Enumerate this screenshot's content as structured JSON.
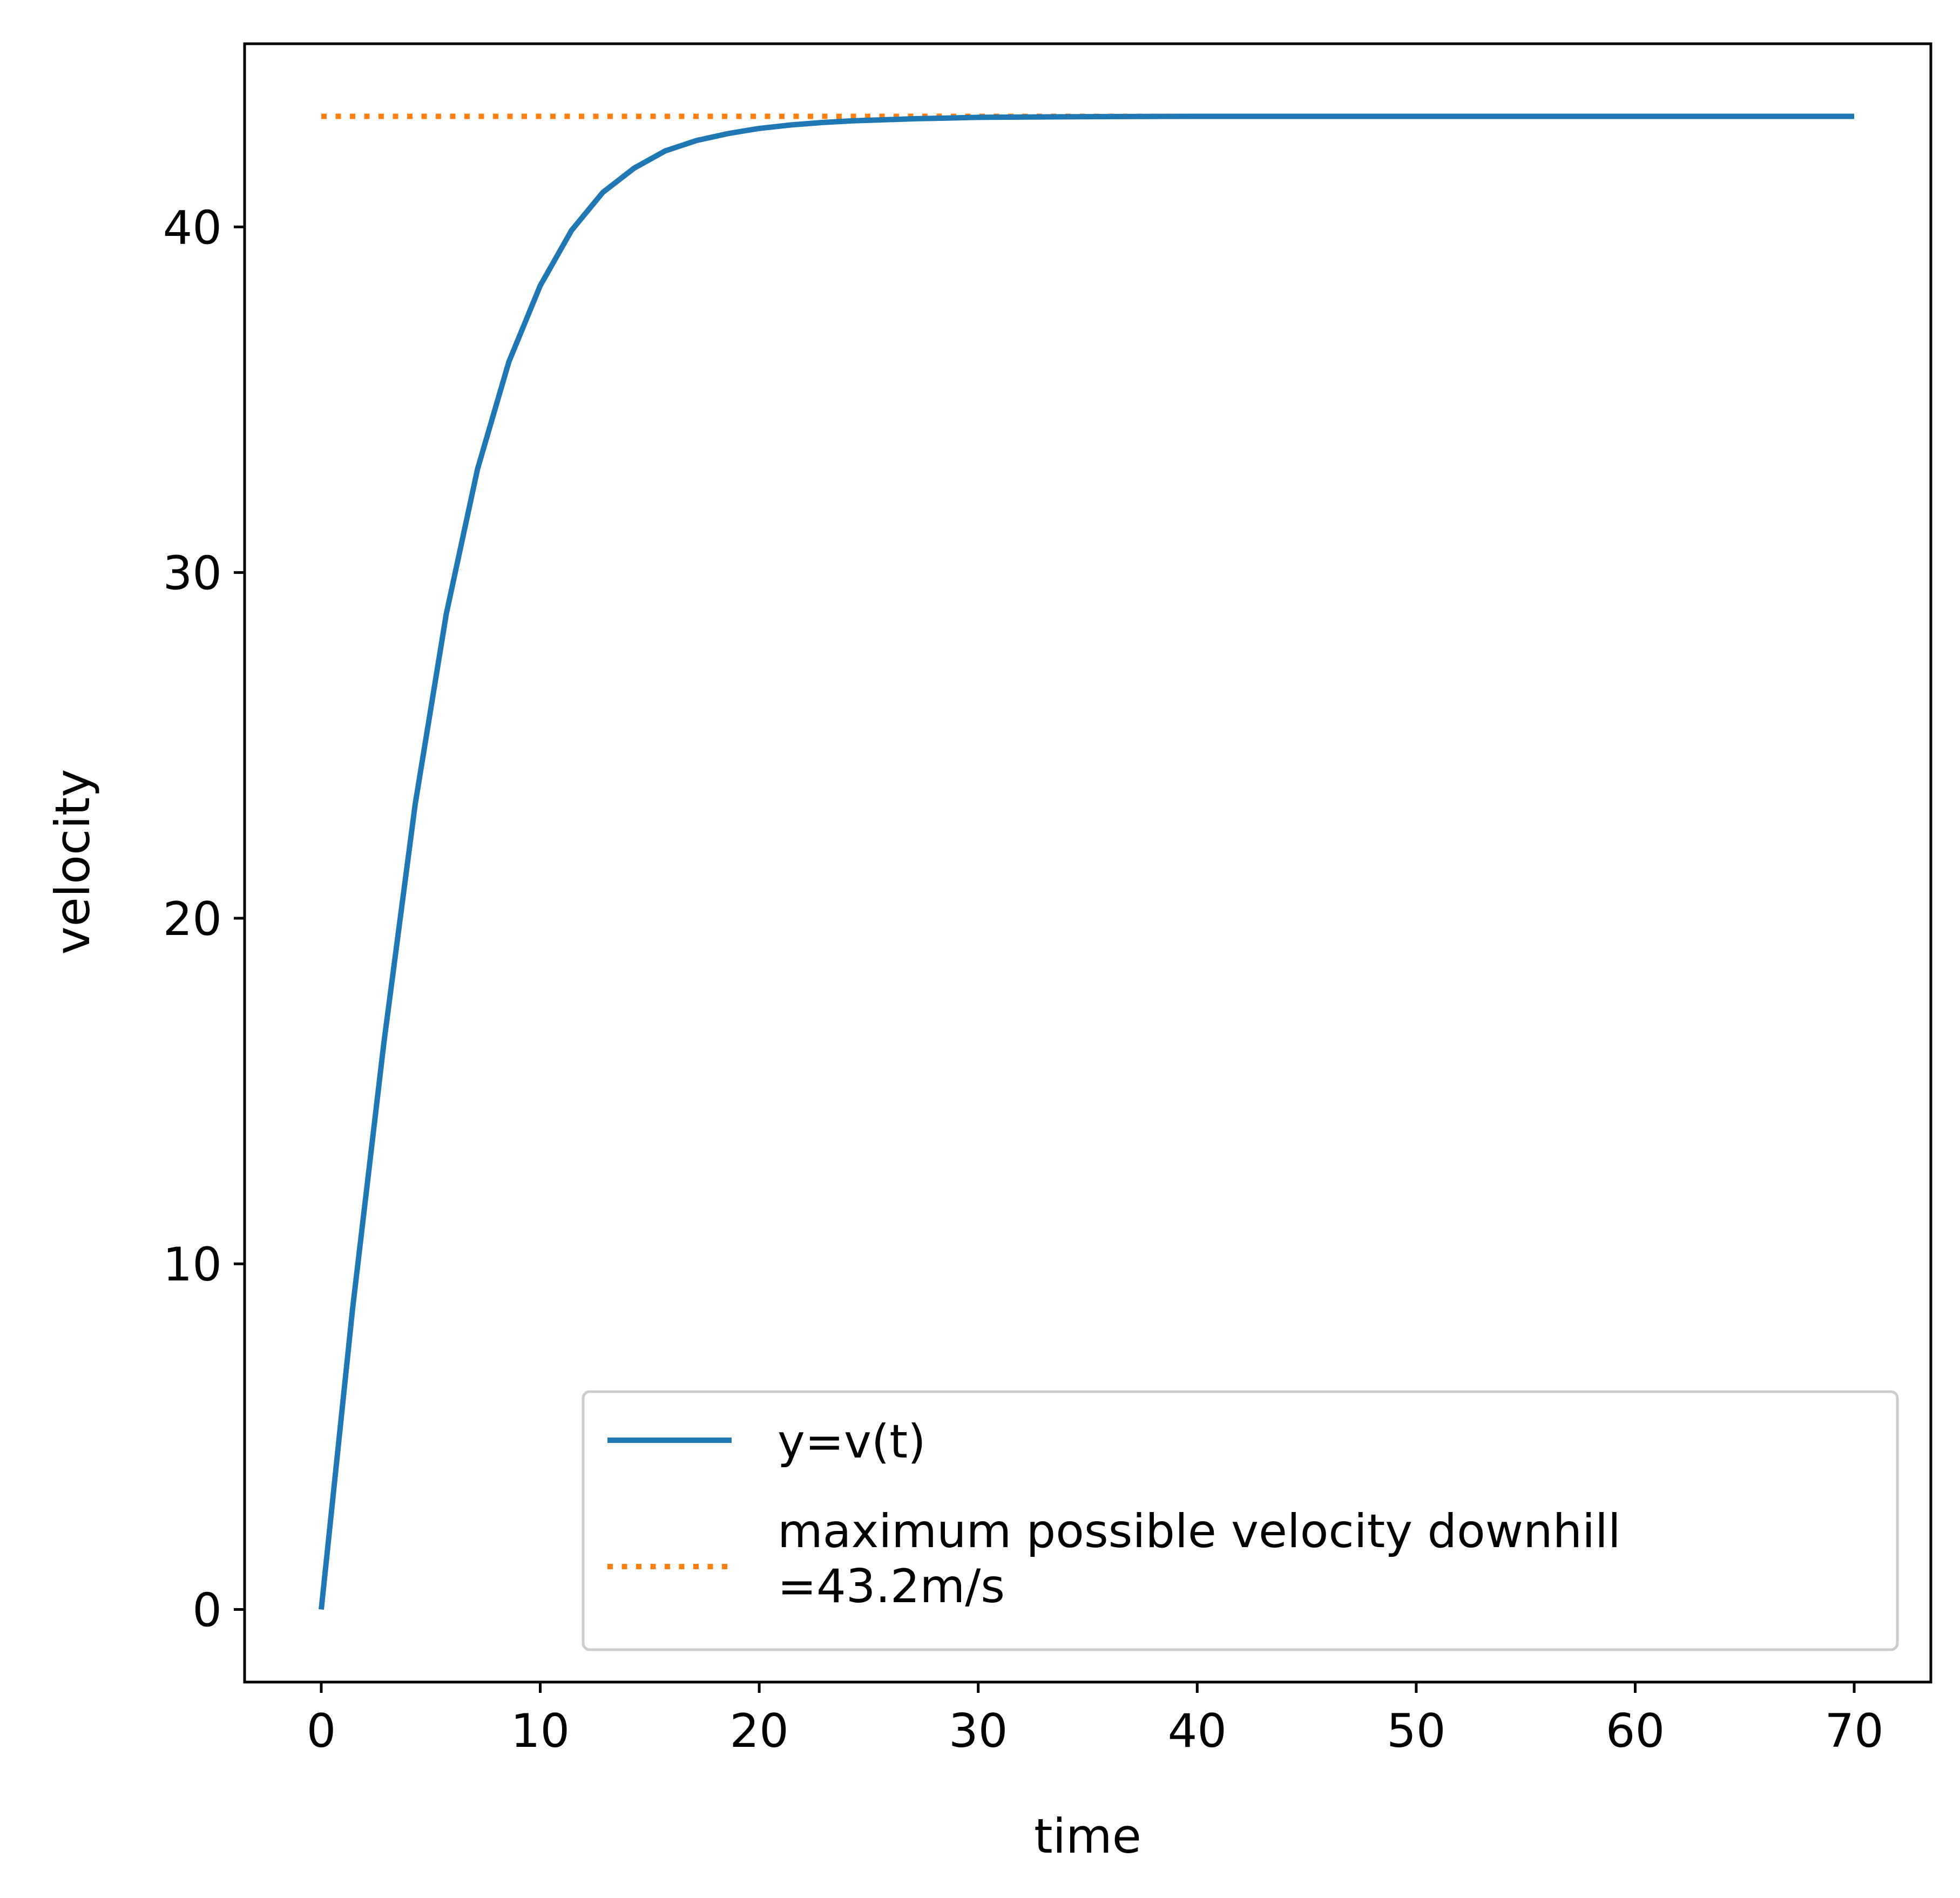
{
  "chart_data": {
    "type": "line",
    "title": "",
    "xlabel": "time",
    "ylabel": "velocity",
    "xlim": [
      -3.5,
      73.5
    ],
    "ylim": [
      -2.1,
      45.3
    ],
    "x_ticks": [
      0,
      10,
      20,
      30,
      40,
      50,
      60,
      70
    ],
    "y_ticks": [
      0,
      10,
      20,
      30,
      40
    ],
    "grid": false,
    "legend_position": "lower-right",
    "series": [
      {
        "name": "y=v(t)",
        "style": "solid",
        "color": "#1f77b4",
        "x": [
          0,
          1.43,
          2.86,
          4.29,
          5.71,
          7.14,
          8.57,
          10.0,
          11.43,
          12.86,
          14.29,
          15.71,
          17.14,
          18.57,
          20.0,
          21.43,
          22.86,
          24.29,
          25.71,
          27.14,
          28.57,
          30.0,
          35.0,
          40.0,
          50.0,
          60.0,
          70.0
        ],
        "y": [
          0,
          8.7,
          16.4,
          23.3,
          28.8,
          33.0,
          36.1,
          38.3,
          39.9,
          41.0,
          41.7,
          42.2,
          42.5,
          42.7,
          42.85,
          42.95,
          43.02,
          43.07,
          43.1,
          43.13,
          43.15,
          43.17,
          43.19,
          43.2,
          43.2,
          43.2,
          43.2
        ]
      },
      {
        "name": "maximum possible velocity downhill\n=43.2m/s",
        "style": "dotted",
        "color": "#ff7f0e",
        "x": [
          0,
          70
        ],
        "y": [
          43.2,
          43.2
        ]
      }
    ]
  }
}
